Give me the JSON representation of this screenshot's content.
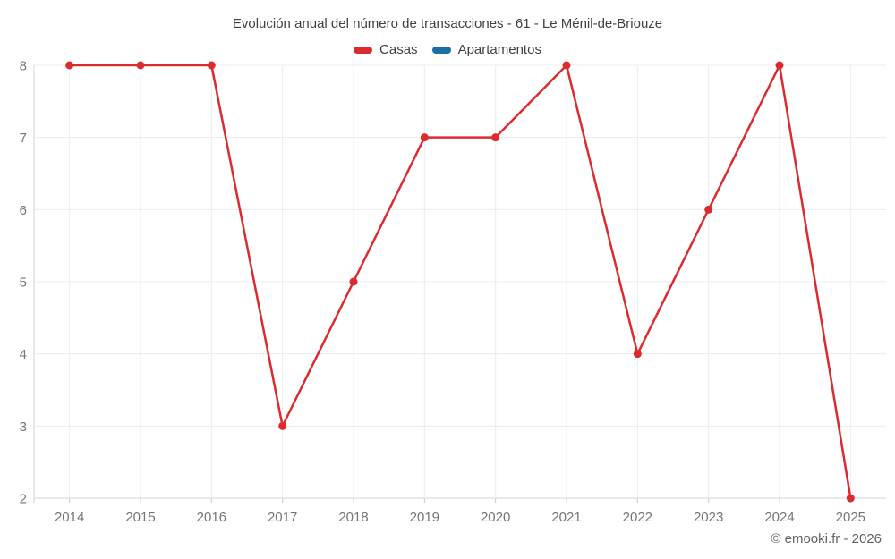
{
  "header": {
    "title": "Evolución anual del número de transacciones - 61 - Le Ménil-de-Briouze"
  },
  "legend": {
    "items": [
      {
        "id": "casas",
        "label": "Casas",
        "color": "#db2b2e"
      },
      {
        "id": "apartamentos",
        "label": "Apartamentos",
        "color": "#1a6fa3"
      }
    ]
  },
  "chart_data": {
    "type": "line",
    "title": "Evolución anual del número de transacciones - 61 - Le Ménil-de-Briouze",
    "categories": [
      "2014",
      "2015",
      "2016",
      "2017",
      "2018",
      "2019",
      "2020",
      "2021",
      "2022",
      "2023",
      "2024",
      "2025"
    ],
    "series": [
      {
        "name": "Casas",
        "color": "#db2b2e",
        "values": [
          8,
          8,
          8,
          3,
          5,
          7,
          7,
          8,
          4,
          6,
          8,
          2
        ]
      },
      {
        "name": "Apartamentos",
        "color": "#1a6fa3",
        "values": []
      }
    ],
    "xlabel": "",
    "ylabel": "",
    "ylim": [
      2,
      8
    ],
    "yticks": [
      2,
      3,
      4,
      5,
      6,
      7,
      8
    ],
    "grid": true,
    "legend_position": "top"
  },
  "footer": {
    "credit": "© emooki.fr - 2026"
  },
  "colors": {
    "casas_line": "#db2b2e",
    "apartamentos_line": "#1a6fa3",
    "gridline": "#ececec",
    "axis_line": "#d6d6d6",
    "tick_mark": "#cccccc",
    "tick_label": "#757575",
    "title_text": "#404040",
    "footer_text": "#5f6368",
    "background": "#ffffff"
  }
}
